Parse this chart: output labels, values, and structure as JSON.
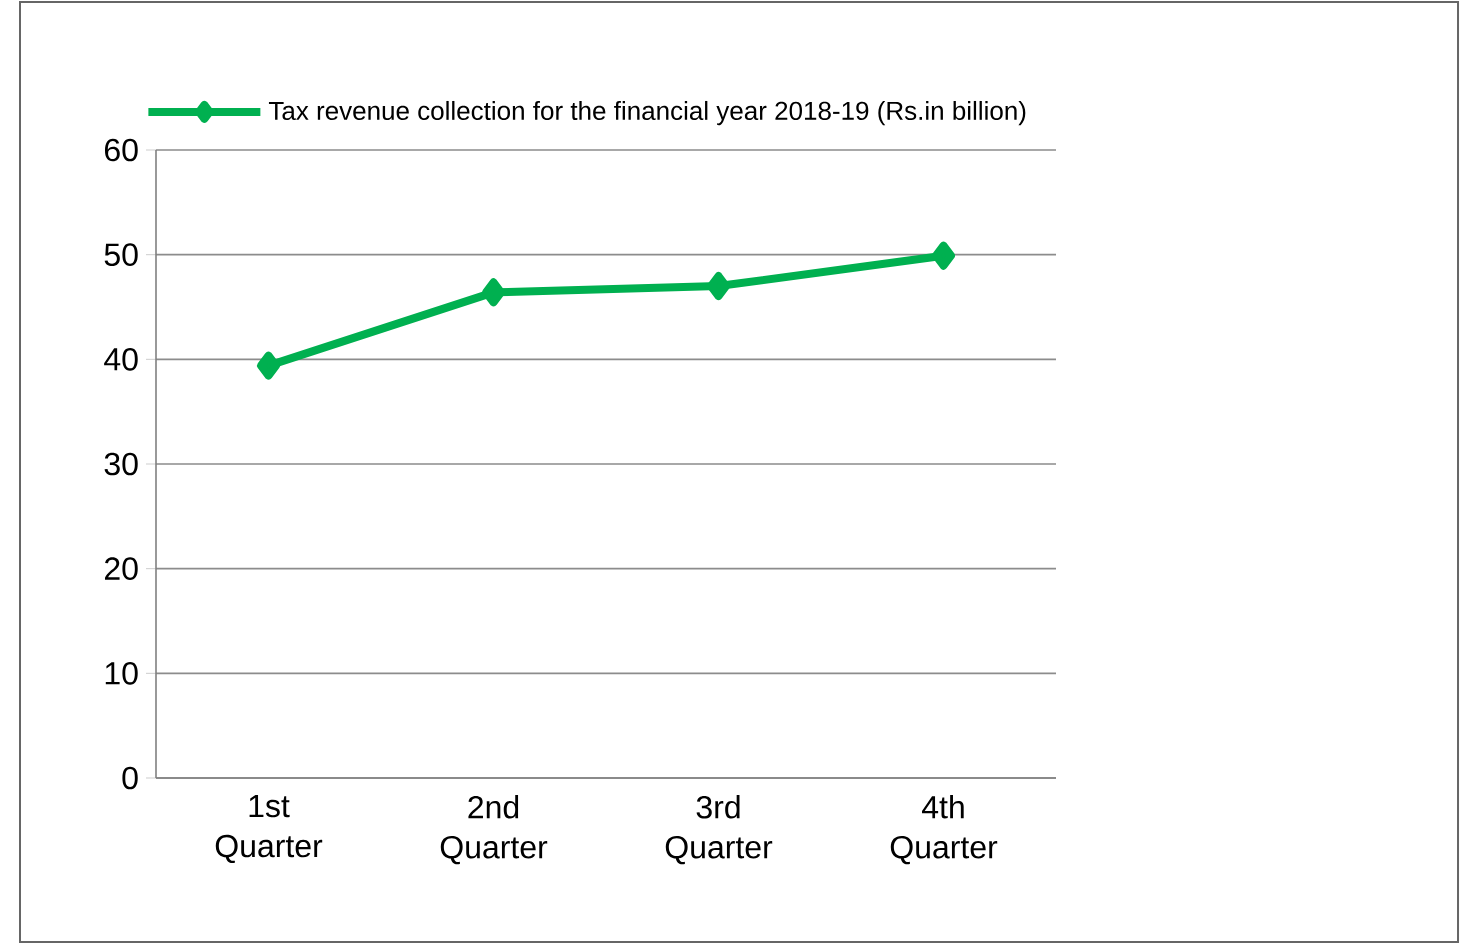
{
  "chart_data": {
    "type": "line",
    "categories": [
      "1st Quarter",
      "2nd Quarter",
      "3rd Quarter",
      "4th Quarter"
    ],
    "series": [
      {
        "name": "Tax revenue collection for the financial year 2018-19  (Rs.in billion)",
        "color": "#00b050",
        "values": [
          39.4,
          46.4,
          47.0,
          49.9
        ]
      }
    ],
    "ylim": [
      0,
      60
    ],
    "yticks": [
      0,
      10,
      20,
      30,
      40,
      50,
      60
    ],
    "grid": "y",
    "legend": "top",
    "marker": "diamond",
    "line_style": "solid"
  }
}
